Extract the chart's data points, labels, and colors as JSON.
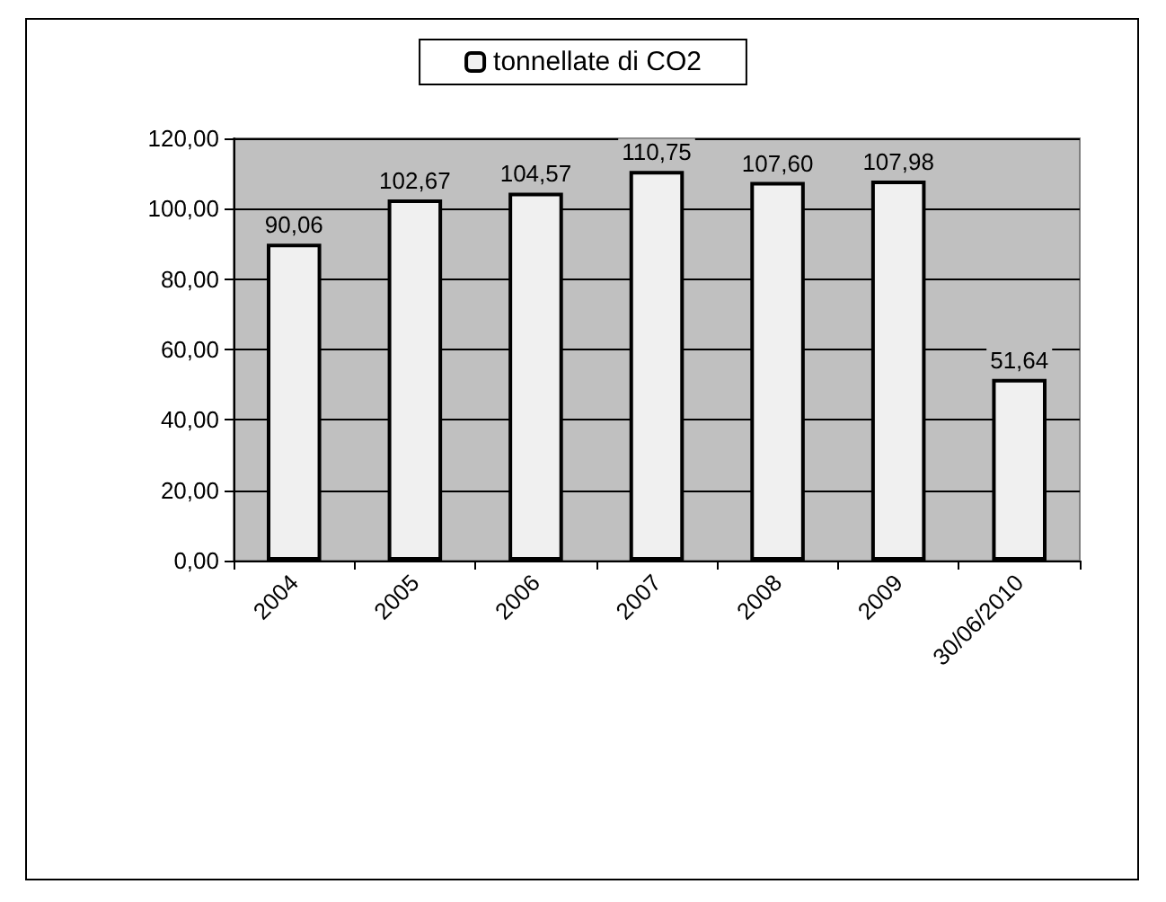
{
  "chart_data": {
    "type": "bar",
    "categories": [
      "2004",
      "2005",
      "2006",
      "2007",
      "2008",
      "2009",
      "30/06/2010"
    ],
    "series": [
      {
        "name": "tonnellate di CO2",
        "color": "#f0f0f0",
        "values": [
          90.06,
          102.67,
          104.57,
          110.75,
          107.6,
          107.98,
          51.64
        ],
        "value_labels": [
          "90,06",
          "102,67",
          "104,57",
          "110,75",
          "107,60",
          "107,98",
          "51,64"
        ]
      }
    ],
    "ylim": [
      0,
      120
    ],
    "yticks": [
      {
        "value": 0,
        "label": "0,00"
      },
      {
        "value": 20,
        "label": "20,00"
      },
      {
        "value": 40,
        "label": "40,00"
      },
      {
        "value": 60,
        "label": "60,00"
      },
      {
        "value": 80,
        "label": "80,00"
      },
      {
        "value": 100,
        "label": "100,00"
      },
      {
        "value": 120,
        "label": "120,00"
      }
    ],
    "grid": "y",
    "legend": "top"
  }
}
